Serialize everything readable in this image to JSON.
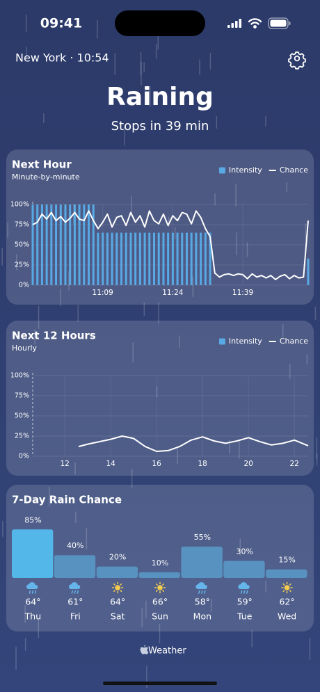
{
  "status_bar": {
    "time": "09:41"
  },
  "header": {
    "location_time": "New York · 10:54",
    "condition": "Raining",
    "summary": "Stops in 39 min"
  },
  "chart_data": [
    {
      "type": "combo",
      "title": "Next Hour",
      "subtitle": "Minute-by-minute",
      "legend": "top-right",
      "grid": true,
      "categories": [
        null,
        null,
        null,
        null,
        null,
        null,
        null,
        null,
        null,
        null,
        null,
        null,
        null,
        null,
        null,
        "11:09",
        null,
        null,
        null,
        null,
        null,
        null,
        null,
        null,
        null,
        null,
        null,
        null,
        null,
        null,
        "11:24",
        null,
        null,
        null,
        null,
        null,
        null,
        null,
        null,
        null,
        null,
        null,
        null,
        null,
        null,
        "11:39",
        null,
        null,
        null,
        null,
        null,
        null,
        null,
        null,
        null,
        null,
        null,
        null,
        null,
        null
      ],
      "ylim": [
        0,
        100
      ],
      "yticks": [
        {
          "value": 0,
          "label": "0%"
        },
        {
          "value": 25,
          "label": "25%"
        },
        {
          "value": 50,
          "label": "50%"
        },
        {
          "value": 75,
          "label": "75%"
        },
        {
          "value": 100,
          "label": "100%"
        }
      ],
      "series": [
        {
          "name": "Intensity",
          "color": "#3b9be0",
          "values": [
            100,
            100,
            100,
            100,
            100,
            100,
            100,
            100,
            100,
            100,
            100,
            100,
            100,
            100,
            65,
            65,
            65,
            65,
            65,
            65,
            65,
            65,
            65,
            65,
            65,
            65,
            65,
            65,
            65,
            65,
            65,
            65,
            65,
            65,
            65,
            65,
            65,
            65,
            65,
            0,
            0,
            0,
            0,
            0,
            0,
            0,
            0,
            0,
            0,
            0,
            0,
            0,
            0,
            0,
            0,
            0,
            0,
            0,
            0,
            33
          ]
        },
        {
          "name": "Chance",
          "color": "#ffffff",
          "values": [
            75,
            78,
            88,
            82,
            90,
            80,
            85,
            78,
            83,
            90,
            82,
            80,
            92,
            80,
            70,
            78,
            88,
            72,
            84,
            86,
            74,
            90,
            78,
            86,
            72,
            92,
            80,
            76,
            88,
            74,
            86,
            80,
            90,
            88,
            76,
            92,
            84,
            70,
            60,
            15,
            10,
            13,
            14,
            12,
            14,
            13,
            8,
            14,
            10,
            12,
            9,
            12,
            7,
            11,
            13,
            8,
            12,
            9,
            10,
            80
          ]
        }
      ]
    },
    {
      "type": "combo",
      "title": "Next 12 Hours",
      "subtitle": "Hourly",
      "legend": "top-right",
      "grid": true,
      "x": [
        12.6,
        13,
        13.5,
        14,
        14.5,
        15,
        15.5,
        16,
        16.5,
        17,
        17.5,
        18,
        18.5,
        19,
        19.5,
        20,
        20.5,
        21,
        21.5,
        22,
        22.6
      ],
      "xlim": [
        10.6,
        22.6
      ],
      "xticks": [
        12,
        14,
        16,
        18,
        20,
        22
      ],
      "ylim": [
        0,
        100
      ],
      "yticks": [
        {
          "value": 0,
          "label": "0%"
        },
        {
          "value": 25,
          "label": "25%"
        },
        {
          "value": 50,
          "label": "50%"
        },
        {
          "value": 75,
          "label": "75%"
        },
        {
          "value": 100,
          "label": "100%"
        }
      ],
      "series": [
        {
          "name": "Intensity",
          "color": "#3b9be0",
          "values": [
            0,
            0,
            0,
            0,
            0,
            0,
            0,
            0,
            0,
            0,
            0,
            0,
            0,
            0,
            0,
            0,
            0,
            0,
            0,
            0,
            0
          ]
        },
        {
          "name": "Chance",
          "color": "#ffffff",
          "values": [
            12,
            15,
            18,
            21,
            25,
            22,
            12,
            6,
            7,
            12,
            20,
            24,
            19,
            16,
            19,
            23,
            18,
            14,
            16,
            20,
            13
          ]
        }
      ]
    },
    {
      "type": "bar",
      "title": "7-Day Rain Chance",
      "categories": [
        "Thu",
        "Fri",
        "Sat",
        "Sun",
        "Mon",
        "Tue",
        "Wed"
      ],
      "values": [
        85,
        40,
        20,
        10,
        55,
        30,
        15
      ],
      "value_labels": [
        "85%",
        "40%",
        "20%",
        "10%",
        "55%",
        "30%",
        "15%"
      ],
      "colors": [
        "#35abe6",
        "#3a7fb5",
        "#3a7fb5",
        "#3a7fb5",
        "#3a7fb5",
        "#3a7fb5",
        "#3a7fb5"
      ],
      "temperatures": [
        "64°",
        "61°",
        "64°",
        "66°",
        "58°",
        "59°",
        "62°"
      ],
      "conditions": [
        "rain",
        "rain",
        "sun",
        "sun",
        "rain",
        "rain",
        "sun"
      ]
    }
  ],
  "footer": {
    "label": "Weather"
  }
}
